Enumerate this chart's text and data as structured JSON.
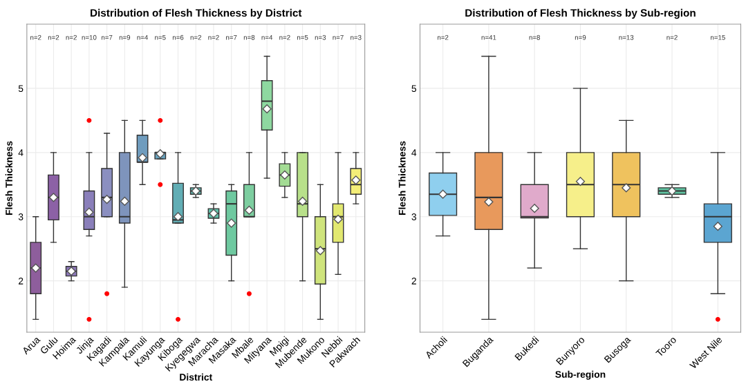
{
  "chart_data": [
    {
      "type": "box",
      "title": "Distribution of Flesh Thickness by District",
      "xlabel": "District",
      "ylabel": "Flesh Thickness",
      "categories": [
        "Arua",
        "Gulu",
        "Hoima",
        "Jinja",
        "Kagadi",
        "Kampala",
        "Kamuli",
        "Kayunga",
        "Kiboga",
        "Kyegegwa",
        "Maracha",
        "Masaka",
        "Mbale",
        "Mityana",
        "Mpigi",
        "Mubende",
        "Mukono",
        "Nebbi",
        "Pakwach"
      ],
      "colors": [
        "#8e5e9c",
        "#8c61a6",
        "#8c78b8",
        "#8a7fba",
        "#8b8fc0",
        "#7e94bc",
        "#6f9cbe",
        "#6aa4c0",
        "#62aeb5",
        "#62b7b0",
        "#5fbfa8",
        "#6ec9a0",
        "#7dcea0",
        "#8ed8a0",
        "#a3dc94",
        "#b8e08a",
        "#cfe47c",
        "#e2e870",
        "#f4ee78"
      ],
      "boxes": [
        {
          "low": 1.4,
          "q1": 1.8,
          "median": 2.2,
          "q3": 2.6,
          "high": 3.0,
          "mean": 2.2
        },
        {
          "low": 2.6,
          "q1": 2.95,
          "median": 3.3,
          "q3": 3.65,
          "high": 4.0,
          "mean": 3.3
        },
        {
          "low": 2.0,
          "q1": 2.075,
          "median": 2.15,
          "q3": 2.225,
          "high": 2.3,
          "mean": 2.15
        },
        {
          "low": 2.7,
          "q1": 2.8,
          "median": 3.0,
          "q3": 3.4,
          "high": 4.0,
          "mean": 3.07,
          "outliers": [
            4.5,
            1.4
          ]
        },
        {
          "low": 3.0,
          "q1": 3.0,
          "median": 3.3,
          "q3": 3.75,
          "high": 4.3,
          "mean": 3.27,
          "outliers": [
            1.8
          ]
        },
        {
          "low": 1.9,
          "q1": 2.9,
          "median": 3.0,
          "q3": 4.0,
          "high": 4.5,
          "mean": 3.24
        },
        {
          "low": 3.5,
          "q1": 3.85,
          "median": 3.85,
          "q3": 4.27,
          "high": 4.5,
          "mean": 3.92
        },
        {
          "low": 3.9,
          "q1": 3.9,
          "median": 4.0,
          "q3": 4.0,
          "high": 4.0,
          "mean": 3.98,
          "outliers": [
            3.5,
            4.5
          ]
        },
        {
          "low": 2.9,
          "q1": 2.9,
          "median": 2.95,
          "q3": 3.52,
          "high": 4.0,
          "mean": 3.0,
          "outliers": [
            1.4
          ]
        },
        {
          "low": 3.3,
          "q1": 3.35,
          "median": 3.4,
          "q3": 3.45,
          "high": 3.5,
          "mean": 3.4
        },
        {
          "low": 2.9,
          "q1": 2.975,
          "median": 3.05,
          "q3": 3.125,
          "high": 3.2,
          "mean": 3.05
        },
        {
          "low": 2.0,
          "q1": 2.4,
          "median": 3.2,
          "q3": 3.4,
          "high": 3.5,
          "mean": 2.9
        },
        {
          "low": 3.0,
          "q1": 3.0,
          "median": 3.0,
          "q3": 3.5,
          "high": 4.0,
          "mean": 3.1,
          "outliers": [
            1.8
          ]
        },
        {
          "low": 3.6,
          "q1": 4.35,
          "median": 4.8,
          "q3": 5.12,
          "high": 5.5,
          "mean": 4.68
        },
        {
          "low": 3.3,
          "q1": 3.475,
          "median": 3.65,
          "q3": 3.825,
          "high": 4.0,
          "mean": 3.65
        },
        {
          "low": 2.0,
          "q1": 3.0,
          "median": 3.2,
          "q3": 4.0,
          "high": 4.0,
          "mean": 3.24
        },
        {
          "low": 1.4,
          "q1": 1.95,
          "median": 2.5,
          "q3": 3.0,
          "high": 3.5,
          "mean": 2.47
        },
        {
          "low": 2.1,
          "q1": 2.6,
          "median": 3.0,
          "q3": 3.2,
          "high": 4.0,
          "mean": 2.96
        },
        {
          "low": 3.2,
          "q1": 3.35,
          "median": 3.5,
          "q3": 3.75,
          "high": 4.0,
          "mean": 3.57
        }
      ],
      "annotations": [
        "n=2",
        "n=2",
        "n=2",
        "n=10",
        "n=7",
        "n=9",
        "n=4",
        "n=5",
        "n=6",
        "n=2",
        "n=2",
        "n=7",
        "n=8",
        "n=4",
        "n=2",
        "n=5",
        "n=3",
        "n=7",
        "n=3"
      ],
      "ylim": [
        1.2,
        6.0
      ],
      "yticks": [
        2,
        3,
        4,
        5
      ],
      "grid": true,
      "legend": false
    },
    {
      "type": "box",
      "title": "Distribution of Flesh Thickness by Sub-region",
      "xlabel": "Sub-region",
      "ylabel": "Flesh Thickness",
      "categories": [
        "Acholi",
        "Buganda",
        "Bukedi",
        "Bunyoro",
        "Busoga",
        "Tooro",
        "West Nile"
      ],
      "colors": [
        "#8fcfee",
        "#e8995c",
        "#e0aacb",
        "#f6ef8a",
        "#efc25e",
        "#5fc2a0",
        "#5ba5d1"
      ],
      "boxes": [
        {
          "low": 2.7,
          "q1": 3.02,
          "median": 3.35,
          "q3": 3.68,
          "high": 4.0,
          "mean": 3.35
        },
        {
          "low": 1.4,
          "q1": 2.8,
          "median": 3.3,
          "q3": 4.0,
          "high": 5.5,
          "mean": 3.23
        },
        {
          "low": 2.2,
          "q1": 2.98,
          "median": 3.0,
          "q3": 3.5,
          "high": 4.0,
          "mean": 3.13
        },
        {
          "low": 2.5,
          "q1": 3.0,
          "median": 3.5,
          "q3": 4.0,
          "high": 5.0,
          "mean": 3.55
        },
        {
          "low": 2.0,
          "q1": 3.0,
          "median": 3.5,
          "q3": 4.0,
          "high": 4.5,
          "mean": 3.45
        },
        {
          "low": 3.3,
          "q1": 3.35,
          "median": 3.4,
          "q3": 3.45,
          "high": 3.5,
          "mean": 3.4
        },
        {
          "low": 1.8,
          "q1": 2.6,
          "median": 3.0,
          "q3": 3.2,
          "high": 4.0,
          "mean": 2.85,
          "outliers": [
            1.4
          ]
        }
      ],
      "annotations": [
        "n=2",
        "n=41",
        "n=8",
        "n=9",
        "n=13",
        "n=2",
        "n=15"
      ],
      "ylim": [
        1.2,
        6.0
      ],
      "yticks": [
        2,
        3,
        4,
        5
      ],
      "grid": true,
      "legend": false
    }
  ]
}
